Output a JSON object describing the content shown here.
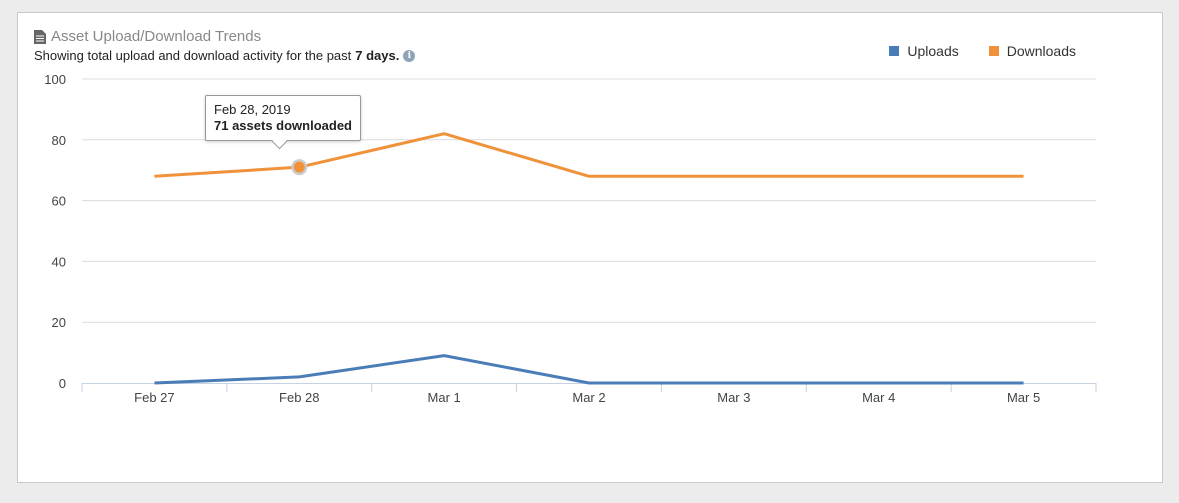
{
  "header": {
    "title": "Asset Upload/Download Trends",
    "subtitle_prefix": "Showing total upload and download activity for the past",
    "subtitle_bold": "7 days."
  },
  "tooltip": {
    "date": "Feb 28, 2019",
    "text": "71 assets downloaded"
  },
  "chart_data": {
    "type": "line",
    "title": "Asset Upload/Download Trends",
    "categories": [
      "Feb 27",
      "Feb 28",
      "Mar 1",
      "Mar 2",
      "Mar 3",
      "Mar 4",
      "Mar 5"
    ],
    "ylim": [
      0,
      100
    ],
    "yticks": [
      0,
      20,
      40,
      60,
      80,
      100
    ],
    "grid": true,
    "legend_placement": "top-right",
    "series": [
      {
        "name": "Uploads",
        "color": "#4a7db8",
        "values": [
          0,
          2,
          9,
          0,
          0,
          0,
          0
        ]
      },
      {
        "name": "Downloads",
        "color": "#f0923a",
        "values": [
          68,
          71,
          82,
          68,
          68,
          68,
          68
        ]
      }
    ],
    "highlighted": {
      "series": "Downloads",
      "category": "Feb 28",
      "value": 71
    }
  }
}
